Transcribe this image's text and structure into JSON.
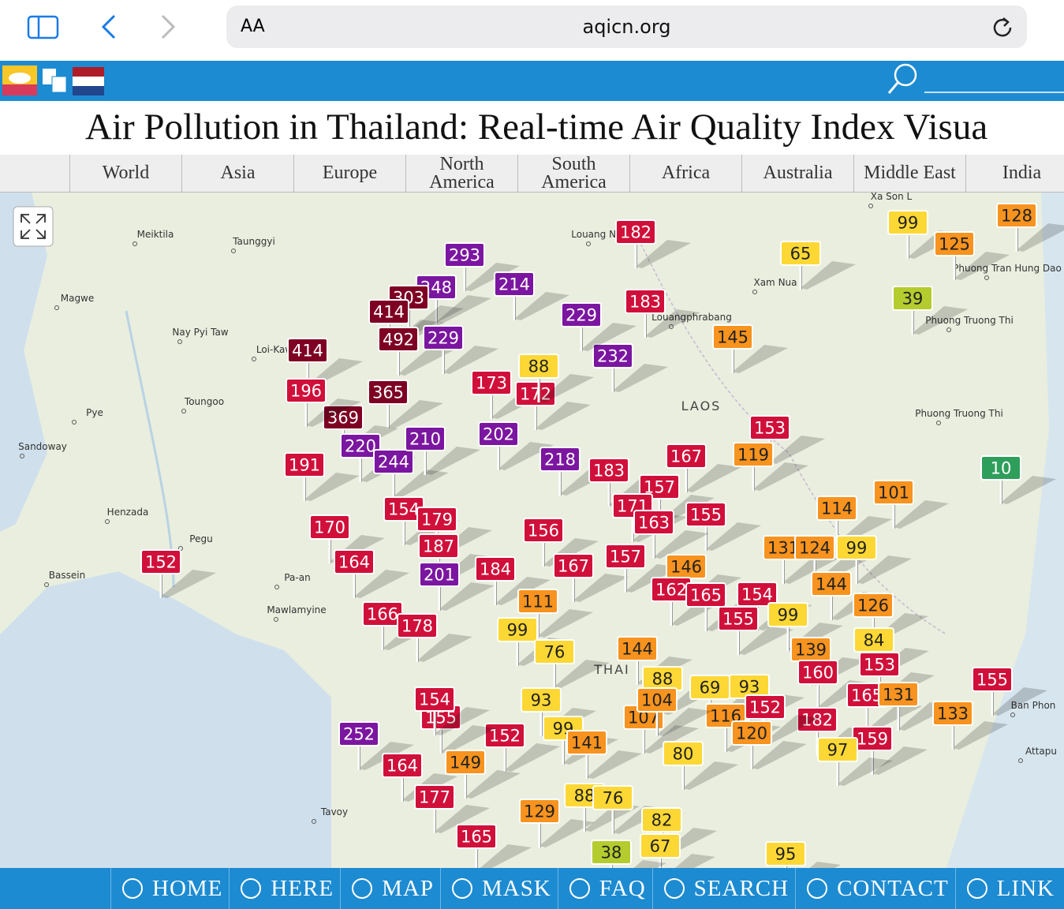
{
  "browser": {
    "font_button": "AA",
    "url": "aqicn.org"
  },
  "header": {
    "title": "Air Pollution in Thailand: Real-time Air Quality Index Visua"
  },
  "tabs": [
    "World",
    "Asia",
    "Europe",
    "North America",
    "South America",
    "Africa",
    "Australia",
    "Middle East",
    "India"
  ],
  "map": {
    "country_labels": [
      "LAOS",
      "THAI"
    ],
    "places": [
      "Meiktila",
      "Taunggyi",
      "Magwe",
      "Nay Pyi Taw",
      "Loi-Kaw",
      "Toungoo",
      "Pye",
      "Sandoway",
      "Henzada",
      "Pegu",
      "Bassein",
      "Pa-an",
      "Mawlamyine",
      "Tavoy",
      "Louang Namtha",
      "Xam Nua",
      "Louangphrabang",
      "Phuong Tran Hung Dao",
      "Phuong Truong Thi",
      "Phuong Truong Thi",
      "Ban Phon",
      "Attapu",
      "Xa Son L"
    ],
    "markers": [
      182,
      65,
      99,
      128,
      125,
      39,
      183,
      145,
      232,
      229,
      293,
      214,
      248,
      303,
      414,
      492,
      414,
      229,
      365,
      369,
      196,
      191,
      220,
      244,
      210,
      202,
      173,
      172,
      88,
      218,
      183,
      167,
      153,
      119,
      157,
      171,
      155,
      163,
      101,
      114,
      10,
      170,
      164,
      152,
      154,
      179,
      187,
      201,
      184,
      156,
      167,
      157,
      146,
      162,
      165,
      154,
      131,
      124,
      99,
      144,
      126,
      155,
      99,
      166,
      178,
      111,
      99,
      76,
      144,
      139,
      84,
      153,
      160,
      155,
      165,
      131,
      133,
      182,
      159,
      97,
      88,
      69,
      93,
      152,
      116,
      120,
      107,
      80,
      104,
      93,
      99,
      141,
      152,
      155,
      154,
      252,
      164,
      149,
      177,
      129,
      88,
      76,
      82,
      67,
      38,
      165,
      95
    ]
  },
  "footer_nav": [
    "HOME",
    "HERE",
    "MAP",
    "MASK",
    "FAQ",
    "SEARCH",
    "CONTACT",
    "LINK"
  ]
}
